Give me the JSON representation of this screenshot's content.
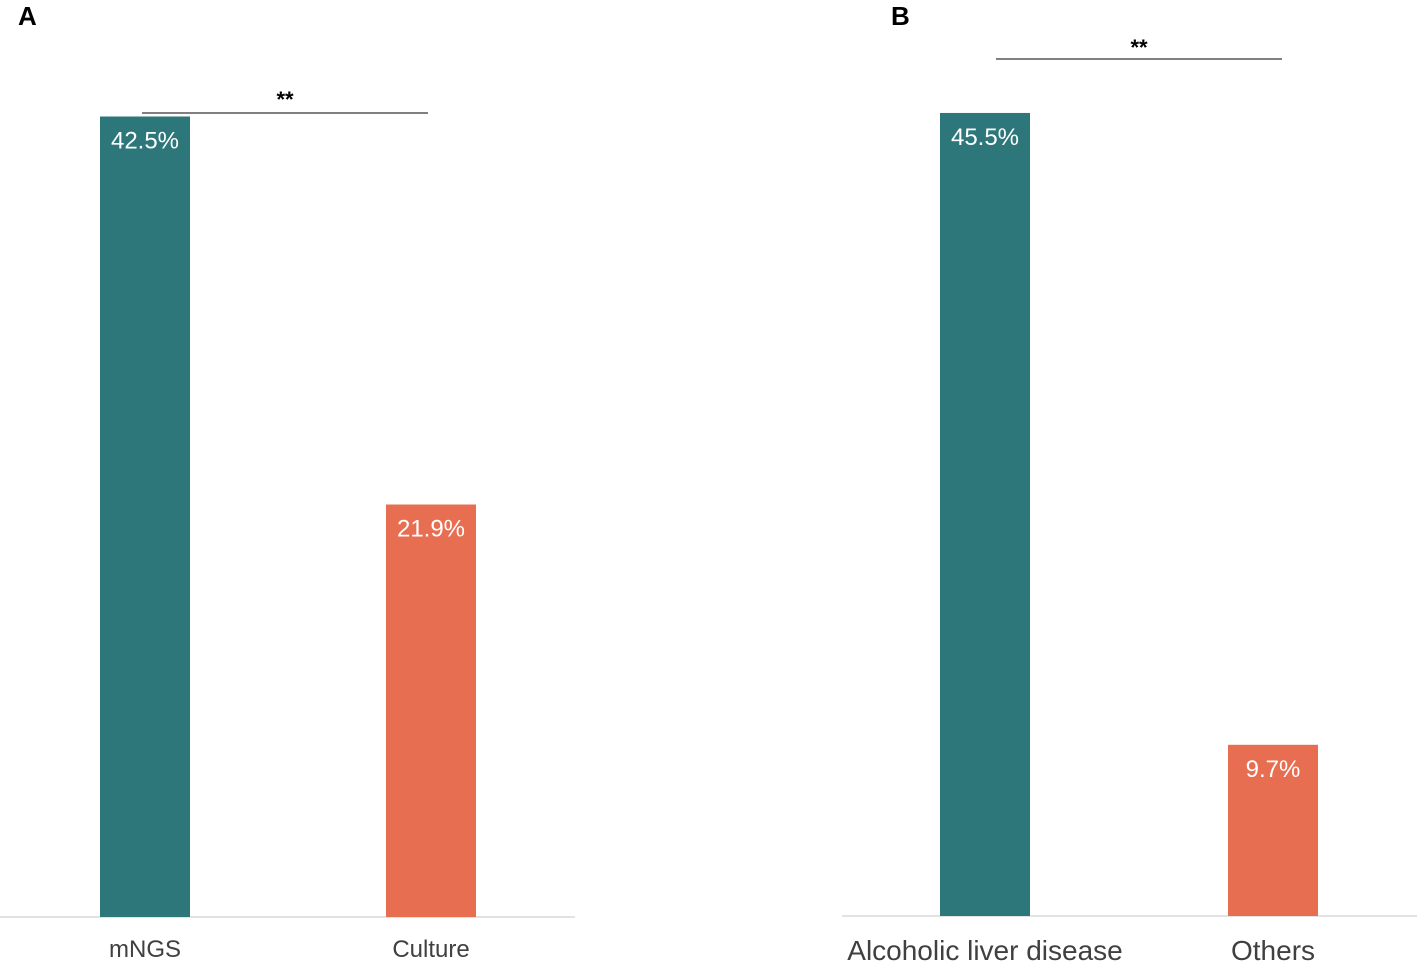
{
  "chart_data": [
    {
      "panel": "A",
      "type": "bar",
      "categories": [
        "mNGS",
        "Culture"
      ],
      "values": [
        42.5,
        21.9
      ],
      "value_labels": [
        "42.5%",
        "21.9%"
      ],
      "colors": [
        "#2d777b",
        "#e86e51"
      ],
      "significance": "**",
      "ylim": [
        0,
        45.5
      ],
      "grid": false,
      "yaxis_visible": false
    },
    {
      "panel": "B",
      "type": "bar",
      "categories": [
        "Alcoholic liver disease",
        "Others"
      ],
      "values": [
        45.5,
        9.7
      ],
      "value_labels": [
        "45.5%",
        "9.7%"
      ],
      "colors": [
        "#2d777b",
        "#e86e51"
      ],
      "significance": "**",
      "ylim": [
        0,
        48.5
      ],
      "grid": false,
      "yaxis_visible": false
    }
  ]
}
